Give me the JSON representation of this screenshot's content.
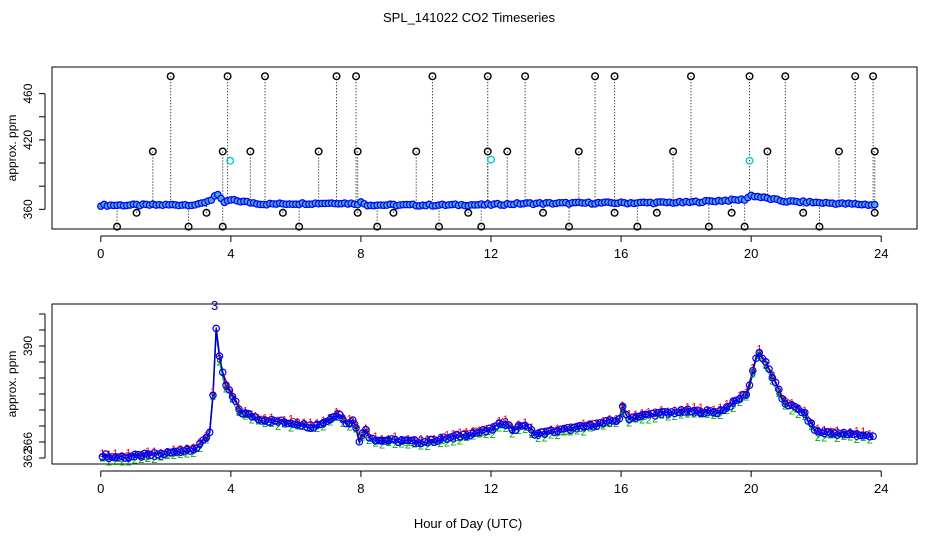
{
  "figure": {
    "title": "SPL_141022  CO2 Timeseries",
    "xlabel": "Hour of Day (UTC)"
  },
  "colors": {
    "axis": "#000000",
    "point_main": "#0000ff",
    "point_fill": "#4aa8c8",
    "outlier": "#000000",
    "flagged": "#00d0d0",
    "series_1": "#ff0000",
    "series_2": "#00b000",
    "series_3": "#0000cc"
  },
  "chart_data": [
    {
      "type": "scatter",
      "id": "top",
      "ylabel": "approx. ppm",
      "xlim": [
        -1.5,
        25.1
      ],
      "ylim": [
        343,
        483
      ],
      "x_ticks": [
        0,
        4,
        8,
        12,
        16,
        20,
        24
      ],
      "x_tick_labels": [
        "0",
        "4",
        "8",
        "12",
        "16",
        "20",
        "24"
      ],
      "y_ticks": [
        360,
        380,
        400,
        420,
        440,
        460
      ],
      "y_tick_labels": [
        "360",
        "",
        "",
        "420",
        "",
        "460"
      ],
      "y_tick_labels_note": "only 360, 420, 460 printed; 380/400/440 unlabeled ticks shown as 380 and 400 by spacing",
      "baseline_series": {
        "x_start": 0.0,
        "x_end": 23.8,
        "step": 0.1,
        "knots": [
          [
            0.0,
            363.5
          ],
          [
            3.0,
            364
          ],
          [
            3.45,
            369
          ],
          [
            3.55,
            374
          ],
          [
            3.65,
            370
          ],
          [
            3.8,
            366
          ],
          [
            4.0,
            368
          ],
          [
            5.0,
            364.5
          ],
          [
            7.3,
            365.5
          ],
          [
            7.9,
            364.8
          ],
          [
            8.0,
            366
          ],
          [
            8.2,
            363.8
          ],
          [
            10.0,
            363.6
          ],
          [
            12.0,
            364
          ],
          [
            13.0,
            365
          ],
          [
            15.8,
            365.6
          ],
          [
            16.0,
            365.5
          ],
          [
            18.0,
            366
          ],
          [
            19.8,
            368.5
          ],
          [
            20.0,
            372
          ],
          [
            20.2,
            371
          ],
          [
            21.0,
            367
          ],
          [
            23.8,
            363.8
          ]
        ]
      },
      "high_outliers": [
        2.15,
        3.9,
        5.05,
        7.25,
        7.85,
        10.2,
        11.9,
        13.05,
        15.2,
        15.8,
        18.15,
        19.95,
        21.05,
        23.2,
        23.75
      ],
      "high_value": 475,
      "mid_outliers": [
        1.6,
        3.75,
        4.6,
        6.7,
        7.9,
        9.7,
        11.9,
        12.5,
        14.7,
        17.6,
        20.5,
        22.7,
        23.8
      ],
      "mid_value": 410,
      "low_outliers": [
        0.5,
        1.1,
        2.7,
        3.25,
        3.75,
        5.6,
        6.1,
        7.9,
        8.5,
        9.0,
        10.4,
        11.3,
        11.7,
        13.6,
        14.4,
        15.8,
        16.5,
        17.1,
        18.7,
        19.4,
        19.8,
        21.6,
        22.1,
        23.8
      ],
      "low_values": [
        345,
        357
      ],
      "flagged_points": [
        [
          3.98,
          402
        ],
        [
          12.0,
          403
        ],
        [
          19.95,
          402
        ]
      ]
    },
    {
      "type": "line",
      "id": "bottom",
      "ylabel": "approx. ppm",
      "xlim": [
        -1.5,
        25.1
      ],
      "ylim": [
        360.5,
        400.5
      ],
      "x_ticks": [
        0,
        4,
        8,
        12,
        16,
        20,
        24
      ],
      "x_tick_labels": [
        "0",
        "4",
        "8",
        "12",
        "16",
        "20",
        "24"
      ],
      "y_ticks": [
        362,
        366,
        370,
        374,
        378,
        382,
        386,
        390,
        394,
        398
      ],
      "y_tick_labels": [
        "362",
        "",
        "366",
        "",
        "",
        "",
        "",
        "390",
        "",
        ""
      ],
      "series": [
        {
          "name": "1",
          "label_char": "1",
          "color": "red",
          "offset": 0.7
        },
        {
          "name": "2",
          "label_char": "2",
          "color": "green",
          "offset": -0.8
        },
        {
          "name": "3",
          "label_char": "3",
          "color": "blue",
          "offset": 0.0
        }
      ],
      "x_start": 0.05,
      "x_end": 23.8,
      "step": 0.1,
      "knots": [
        [
          0.05,
          362.8
        ],
        [
          0.3,
          362.2
        ],
        [
          1.0,
          362.4
        ],
        [
          2.0,
          363.1
        ],
        [
          3.0,
          364.6
        ],
        [
          3.35,
          368.5
        ],
        [
          3.45,
          378
        ],
        [
          3.52,
          397.5
        ],
        [
          3.6,
          389
        ],
        [
          3.8,
          381
        ],
        [
          4.0,
          378
        ],
        [
          4.3,
          373.5
        ],
        [
          5.0,
          371.5
        ],
        [
          6.0,
          370.7
        ],
        [
          6.5,
          369.8
        ],
        [
          7.0,
          371.5
        ],
        [
          7.35,
          373.3
        ],
        [
          7.55,
          370.5
        ],
        [
          7.8,
          371.5
        ],
        [
          7.95,
          366.5
        ],
        [
          8.0,
          366
        ],
        [
          8.1,
          370
        ],
        [
          8.25,
          367.5
        ],
        [
          8.5,
          366.5
        ],
        [
          10.0,
          366
        ],
        [
          12.0,
          369
        ],
        [
          12.4,
          371
        ],
        [
          12.7,
          369
        ],
        [
          13.0,
          370.5
        ],
        [
          13.2,
          369
        ],
        [
          13.4,
          368
        ],
        [
          15.0,
          370
        ],
        [
          15.9,
          371.5
        ],
        [
          16.0,
          372.5
        ],
        [
          16.05,
          374.5
        ],
        [
          16.2,
          372
        ],
        [
          17.0,
          373
        ],
        [
          18.0,
          373.7
        ],
        [
          19.0,
          373.5
        ],
        [
          19.5,
          376
        ],
        [
          19.9,
          378.5
        ],
        [
          20.2,
          389
        ],
        [
          20.5,
          385
        ],
        [
          21.0,
          376
        ],
        [
          21.6,
          373.5
        ],
        [
          22.0,
          368.5
        ],
        [
          23.8,
          367.5
        ]
      ],
      "peak_label": {
        "char": "3",
        "x": 3.5,
        "y": 399
      }
    }
  ]
}
